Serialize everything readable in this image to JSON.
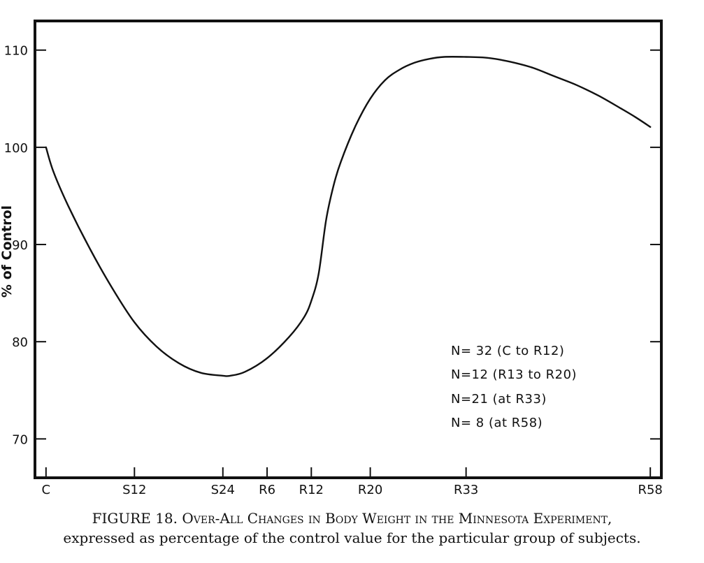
{
  "chart_data": {
    "type": "line",
    "title": "",
    "xlabel": "",
    "ylabel": "% of Control",
    "categories": [
      "C",
      "S12",
      "S24",
      "R6",
      "R12",
      "R20",
      "R33",
      "R58"
    ],
    "x_positions_weeks": [
      0,
      12,
      24,
      30,
      36,
      44,
      57,
      82
    ],
    "yticks": [
      70,
      80,
      90,
      100,
      110
    ],
    "ylim": [
      66,
      113
    ],
    "xlim": [
      -1.5,
      83.5
    ],
    "grid": false,
    "series": [
      {
        "x": [
          0,
          1,
          3,
          6,
          9,
          12,
          15,
          18,
          21,
          24,
          25,
          27,
          30,
          33,
          35,
          36,
          37,
          38,
          39,
          40,
          42,
          44,
          46,
          48,
          50,
          52,
          54,
          57,
          60,
          63,
          66,
          69,
          72,
          75,
          78,
          80,
          82
        ],
        "y": [
          100.0,
          97.5,
          94.0,
          89.5,
          85.5,
          82.0,
          79.5,
          77.8,
          76.8,
          76.5,
          76.5,
          76.9,
          78.3,
          80.5,
          82.5,
          84.2,
          87.0,
          92.5,
          96.0,
          98.5,
          102.2,
          105.0,
          106.9,
          108.0,
          108.7,
          109.1,
          109.3,
          109.3,
          109.2,
          108.8,
          108.2,
          107.3,
          106.4,
          105.3,
          104.0,
          103.1,
          102.1
        ]
      }
    ]
  },
  "notes": [
    "N= 32 (C to R12)",
    "N=12 (R13 to R20)",
    "N=21 (at R33)",
    "N= 8 (at R58)"
  ],
  "caption": {
    "lead": "FIGURE 18.",
    "title": "Over-All Changes in Body Weight in the Minnesota Experiment,",
    "line2": "expressed as percentage of the control value for the particular group of subjects."
  }
}
